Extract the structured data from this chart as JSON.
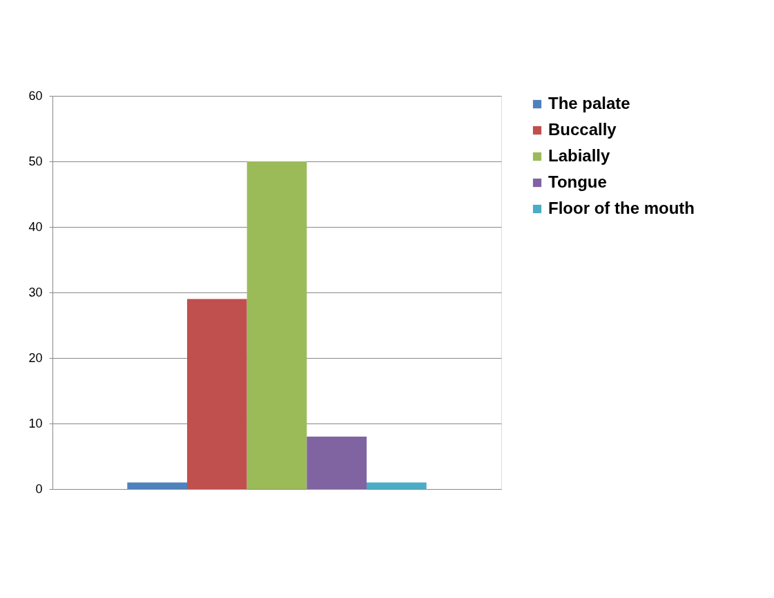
{
  "chart_data": {
    "type": "bar",
    "categories": [
      null
    ],
    "series": [
      {
        "name": "The palate",
        "color": "#4f81bd",
        "values": [
          1
        ]
      },
      {
        "name": "Buccally",
        "color": "#c0504d",
        "values": [
          29
        ]
      },
      {
        "name": "Labially",
        "color": "#9bbb59",
        "values": [
          50
        ]
      },
      {
        "name": "Tongue",
        "color": "#8064a2",
        "values": [
          8
        ]
      },
      {
        "name": "Floor of the mouth",
        "color": "#4bacc6",
        "values": [
          1
        ]
      }
    ],
    "ylim": [
      0,
      60
    ],
    "yticks": [
      0,
      10,
      20,
      30,
      40,
      50,
      60
    ],
    "grid": "y",
    "legend": "right",
    "tick_labels": "y"
  }
}
